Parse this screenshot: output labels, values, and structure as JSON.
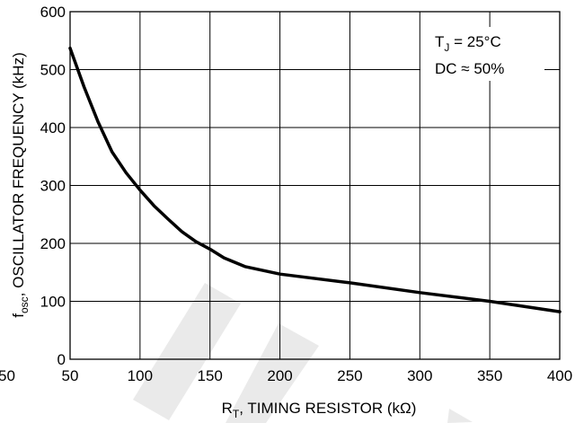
{
  "chart_data": {
    "type": "line",
    "title": "",
    "xlabel": "R",
    "xlabel_sub": "T",
    "xlabel_rest": ", TIMING RESISTOR (kΩ)",
    "ylabel": "f",
    "ylabel_sub": "osc",
    "ylabel_rest": ", OSCILLATOR FREQUENCY (kHz)",
    "xlim": [
      50,
      400
    ],
    "ylim": [
      0,
      600
    ],
    "x_ticks": [
      50,
      100,
      150,
      200,
      250,
      300,
      350,
      400
    ],
    "y_ticks": [
      0,
      100,
      200,
      300,
      400,
      500,
      600
    ],
    "x_tick_labels": [
      "50",
      "100",
      "150",
      "200",
      "250",
      "300",
      "350",
      "400"
    ],
    "y_tick_labels": [
      "0",
      "100",
      "200",
      "300",
      "400",
      "500",
      "600"
    ],
    "left_edge_label": "50",
    "grid": true,
    "series": [
      {
        "x": [
          50,
          60,
          70,
          80,
          90,
          100,
          110,
          120,
          130,
          140,
          150,
          160,
          175,
          200,
          250,
          300,
          350,
          400
        ],
        "y": [
          537,
          470,
          410,
          358,
          322,
          292,
          265,
          242,
          220,
          203,
          190,
          175,
          160,
          147,
          132,
          115,
          100,
          82
        ]
      }
    ],
    "annotations": {
      "line1_main": "T",
      "line1_sub": "J",
      "line1_rest": " = 25°C",
      "line2": "DC ≈ 50%"
    }
  }
}
